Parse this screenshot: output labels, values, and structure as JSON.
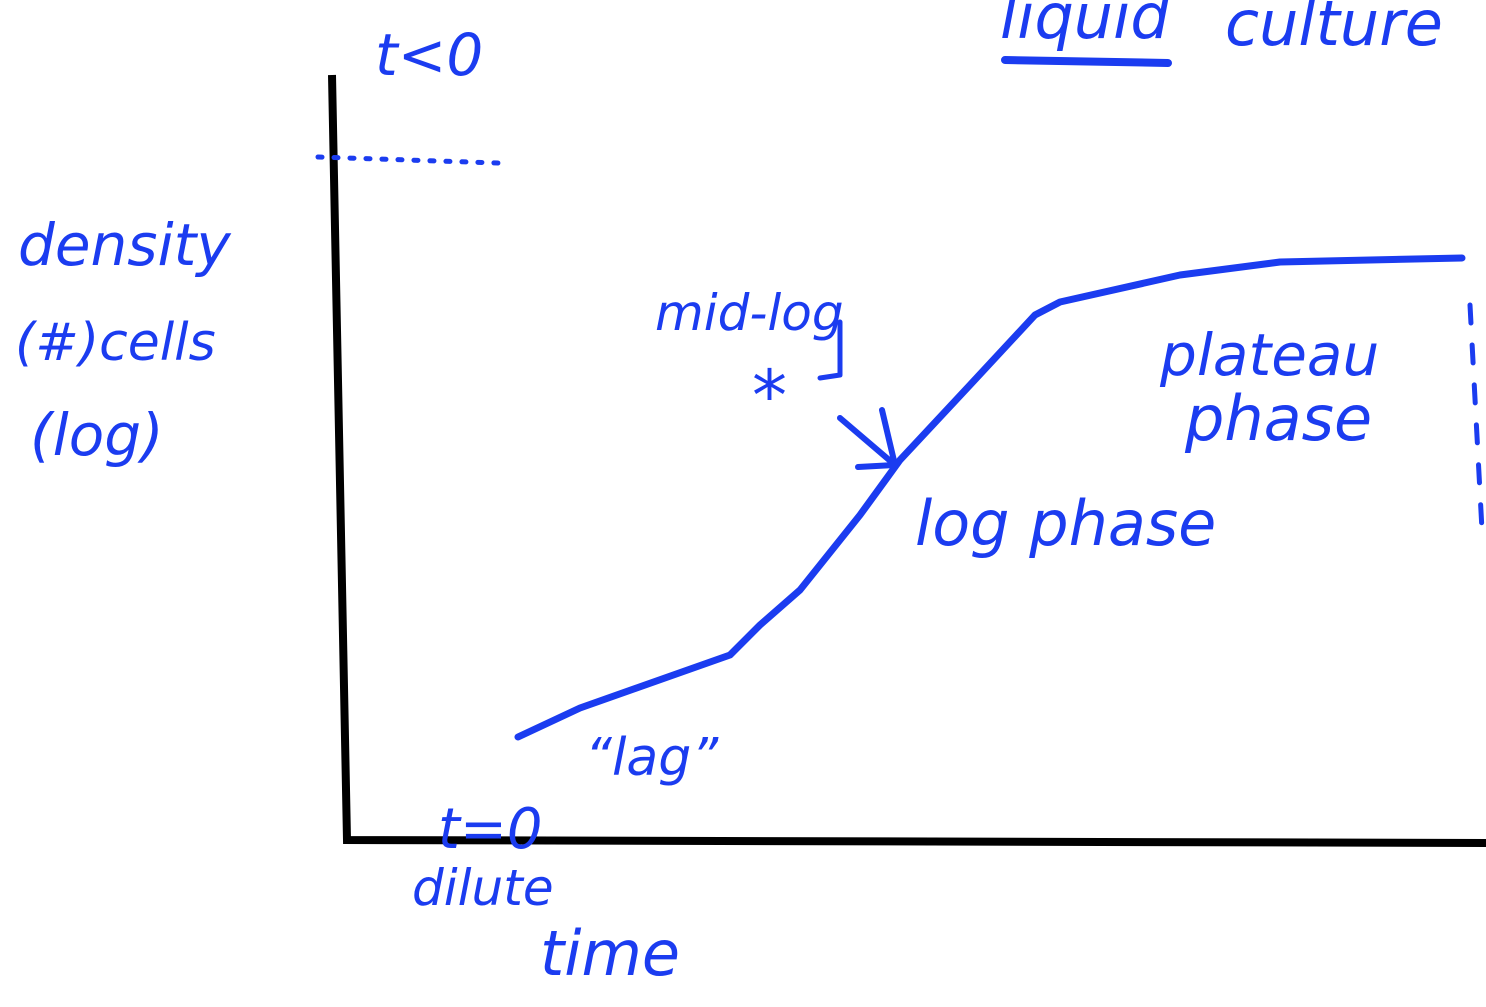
{
  "header": {
    "word1": "liquid",
    "word2": "culture"
  },
  "axes": {
    "y_top_label": "t<0",
    "y_label": [
      "density",
      "(#)cells",
      "(log)"
    ],
    "x_label": "time",
    "origin_label": "t=0",
    "origin_note": "dilute"
  },
  "annotations": {
    "lag": "“lag”",
    "mid_log": "mid-log",
    "star": "*",
    "log_phase": "log phase",
    "plateau": [
      "plateau",
      "phase"
    ]
  }
}
